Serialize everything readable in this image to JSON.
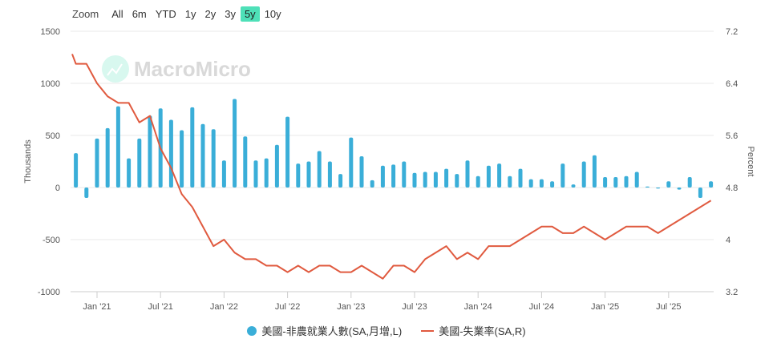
{
  "zoom": {
    "label": "Zoom",
    "buttons": [
      "All",
      "6m",
      "YTD",
      "1y",
      "2y",
      "3y",
      "5y",
      "10y"
    ],
    "active": "5y"
  },
  "logo": "MacroMicro",
  "colors": {
    "bars": "#3aaed8",
    "line": "#e05a3f",
    "active_button": "#4ee0b8",
    "watermark": "#d9d9d9"
  },
  "chart_data": {
    "type": "bar+line",
    "x_tick_labels": [
      "Jan '21",
      "Jul '21",
      "Jan '22",
      "Jul '22",
      "Jan '23",
      "Jul '23",
      "Jan '24",
      "Jul '24",
      "Jan '25",
      "Jul '25"
    ],
    "x_ticks": [
      "2021-01",
      "2021-07",
      "2022-01",
      "2022-07",
      "2023-01",
      "2023-07",
      "2024-01",
      "2024-07",
      "2025-01",
      "2025-07"
    ],
    "ylabel_left": "Thousands",
    "ylabel_right": "Percent",
    "ylim_left": [
      -1000,
      1500
    ],
    "yticks_left": [
      "1500",
      "1000",
      "500",
      "0",
      "-500",
      "-1000"
    ],
    "ylim_right": [
      3.2,
      7.2
    ],
    "yticks_right": [
      "7.2",
      "6.4",
      "5.6",
      "4.8",
      "4",
      "3.2"
    ],
    "grid": true,
    "legend_placement": "bottom",
    "x": [
      "2020-11",
      "2020-12",
      "2021-01",
      "2021-02",
      "2021-03",
      "2021-04",
      "2021-05",
      "2021-06",
      "2021-07",
      "2021-08",
      "2021-09",
      "2021-10",
      "2021-11",
      "2021-12",
      "2022-01",
      "2022-02",
      "2022-03",
      "2022-04",
      "2022-05",
      "2022-06",
      "2022-07",
      "2022-08",
      "2022-09",
      "2022-10",
      "2022-11",
      "2022-12",
      "2023-01",
      "2023-02",
      "2023-03",
      "2023-04",
      "2023-05",
      "2023-06",
      "2023-07",
      "2023-08",
      "2023-09",
      "2023-10",
      "2023-11",
      "2023-12",
      "2024-01",
      "2024-02",
      "2024-03",
      "2024-04",
      "2024-05",
      "2024-06",
      "2024-07",
      "2024-08",
      "2024-09",
      "2024-10",
      "2024-11",
      "2024-12",
      "2025-01",
      "2025-02",
      "2025-03",
      "2025-04",
      "2025-05",
      "2025-06",
      "2025-07",
      "2025-08",
      "2025-09",
      "2025-10",
      "2025-11"
    ],
    "series": [
      {
        "name": "美國-非農就業人數(SA,月增,L)",
        "type": "bar",
        "axis": "left",
        "values": [
          330,
          -100,
          470,
          570,
          780,
          280,
          470,
          690,
          760,
          650,
          550,
          770,
          610,
          560,
          260,
          850,
          490,
          260,
          280,
          410,
          680,
          230,
          250,
          350,
          250,
          130,
          480,
          300,
          70,
          210,
          220,
          250,
          140,
          150,
          150,
          180,
          130,
          260,
          110,
          210,
          230,
          110,
          180,
          80,
          80,
          60,
          230,
          30,
          250,
          310,
          100,
          100,
          110,
          150,
          10,
          -10,
          60,
          -20,
          100,
          -100,
          60
        ]
      },
      {
        "name": "美國-失業率(SA,R)",
        "type": "line",
        "axis": "right",
        "values": [
          6.7,
          6.7,
          6.4,
          6.2,
          6.1,
          6.1,
          5.8,
          5.9,
          5.4,
          5.1,
          4.7,
          4.5,
          4.2,
          3.9,
          4.0,
          3.8,
          3.7,
          3.7,
          3.6,
          3.6,
          3.5,
          3.6,
          3.5,
          3.6,
          3.6,
          3.5,
          3.5,
          3.6,
          3.5,
          3.4,
          3.6,
          3.6,
          3.5,
          3.7,
          3.8,
          3.9,
          3.7,
          3.8,
          3.7,
          3.9,
          3.9,
          3.9,
          4.0,
          4.1,
          4.2,
          4.2,
          4.1,
          4.1,
          4.2,
          4.1,
          4.0,
          4.1,
          4.2,
          4.2,
          4.2,
          4.1,
          4.2,
          4.3,
          4.4,
          4.5,
          4.6
        ]
      }
    ]
  }
}
